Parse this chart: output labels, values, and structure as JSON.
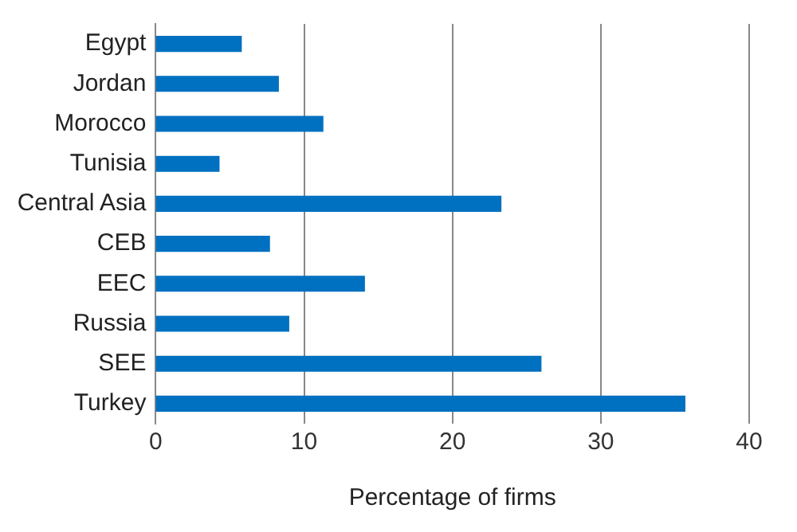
{
  "chart_data": {
    "type": "bar",
    "orientation": "horizontal",
    "xlabel": "Percentage of firms",
    "categories": [
      "Egypt",
      "Jordan",
      "Morocco",
      "Tunisia",
      "Central Asia",
      "CEB",
      "EEC",
      "Russia",
      "SEE",
      "Turkey"
    ],
    "values": [
      5.8,
      8.3,
      11.3,
      4.3,
      23.3,
      7.7,
      14.1,
      9.0,
      26.0,
      35.7
    ],
    "color": "#0070c0",
    "xlim": [
      0,
      40
    ],
    "xticks": [
      0,
      10,
      20,
      30,
      40
    ],
    "grid": "x",
    "legend": false
  }
}
